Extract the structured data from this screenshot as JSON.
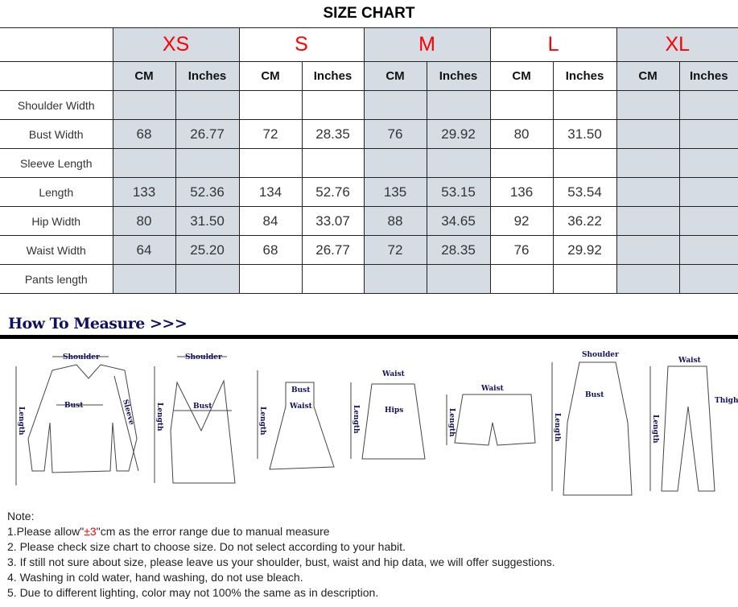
{
  "title": "SIZE CHART",
  "sizes": [
    "XS",
    "S",
    "M",
    "L",
    "XL"
  ],
  "units": [
    "CM",
    "Inches"
  ],
  "rows": [
    {
      "label": "Shoulder Width",
      "values": [
        "",
        "",
        "",
        "",
        "",
        "",
        "",
        "",
        "",
        ""
      ]
    },
    {
      "label": "Bust Width",
      "values": [
        "68",
        "26.77",
        "72",
        "28.35",
        "76",
        "29.92",
        "80",
        "31.50",
        "",
        ""
      ]
    },
    {
      "label": "Sleeve Length",
      "values": [
        "",
        "",
        "",
        "",
        "",
        "",
        "",
        "",
        "",
        ""
      ]
    },
    {
      "label": "Length",
      "values": [
        "133",
        "52.36",
        "134",
        "52.76",
        "135",
        "53.15",
        "136",
        "53.54",
        "",
        ""
      ]
    },
    {
      "label": "Hip Width",
      "values": [
        "80",
        "31.50",
        "84",
        "33.07",
        "88",
        "34.65",
        "92",
        "36.22",
        "",
        ""
      ]
    },
    {
      "label": "Waist Width",
      "values": [
        "64",
        "25.20",
        "68",
        "26.77",
        "72",
        "28.35",
        "76",
        "29.92",
        "",
        ""
      ]
    },
    {
      "label": "Pants length",
      "values": [
        "",
        "",
        "",
        "",
        "",
        "",
        "",
        "",
        "",
        ""
      ]
    }
  ],
  "colors": {
    "size_label": "#ff0000",
    "shaded_column": "#d6dce4",
    "heading": "#10105e"
  },
  "how_to_measure": "How To Measure >>>",
  "diagram_labels": {
    "shoulder": "Shoulder",
    "length": "Length",
    "bust": "Bust",
    "sleeve": "Sleeve",
    "waist": "Waist",
    "hips": "Hips",
    "thigh": "Thigh"
  },
  "notes": {
    "heading": "Note:",
    "n1_pre": "1.Please allow\"",
    "n1_red": "±3",
    "n1_post": "\"cm as the error range due to manual measure",
    "n2": "2. Please check size chart to choose size. Do not select according to your habit.",
    "n3": "3. If still not sure about size, please leave us your shoulder, bust, waist and hip data, we will offer suggestions.",
    "n4": "4. Washing in cold water, hand washing, do not use bleach.",
    "n5": "5. Due to different lighting, color may not 100% the same as in description."
  }
}
